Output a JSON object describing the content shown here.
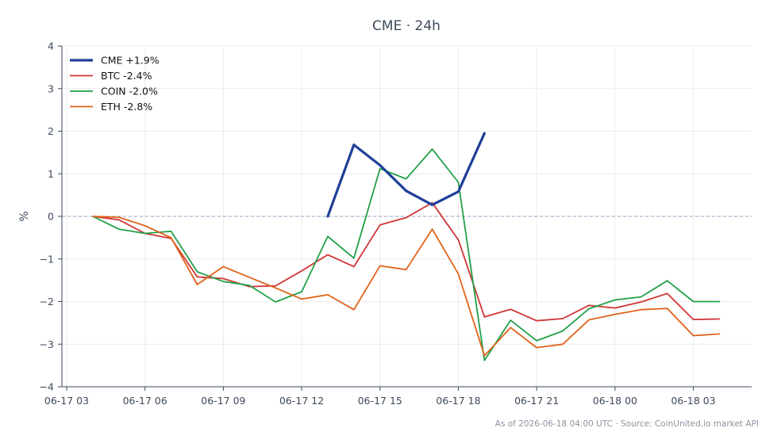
{
  "chart_data": {
    "type": "line",
    "title": "CME · 24h",
    "xlabel": "",
    "ylabel": "%",
    "ylim": [
      -4,
      4
    ],
    "yticks": [
      "4",
      "3",
      "2",
      "1",
      "0",
      "−1",
      "−2",
      "−3",
      "−4"
    ],
    "x_tick_labels": [
      "06-17 03",
      "06-17 06",
      "06-17 09",
      "06-17 12",
      "06-17 15",
      "06-17 18",
      "06-17 21",
      "06-18 00",
      "06-18 03"
    ],
    "x": [
      "06-17 04",
      "06-17 05",
      "06-17 06",
      "06-17 07",
      "06-17 08",
      "06-17 09",
      "06-17 10",
      "06-17 11",
      "06-17 12",
      "06-17 13",
      "06-17 14",
      "06-17 15",
      "06-17 16",
      "06-17 17",
      "06-17 18",
      "06-17 19",
      "06-17 20",
      "06-17 21",
      "06-17 22",
      "06-17 23",
      "06-18 00",
      "06-18 01",
      "06-18 02",
      "06-18 03",
      "06-18 04"
    ],
    "grid": true,
    "zero_line": true,
    "legend_position": "top-left",
    "series": [
      {
        "name": "CME +1.9%",
        "color": "#1f3f99",
        "width": 3.2,
        "values": [
          null,
          null,
          null,
          null,
          null,
          null,
          null,
          null,
          null,
          0.0,
          1.68,
          1.2,
          0.6,
          0.27,
          0.58,
          1.95,
          null,
          null,
          null,
          null,
          null,
          null,
          null,
          null,
          null
        ]
      },
      {
        "name": "BTC -2.4%",
        "color": "#d03535",
        "width": 1.8,
        "values": [
          0.0,
          -0.08,
          -0.4,
          -0.52,
          -1.42,
          -1.46,
          -1.65,
          -1.63,
          -1.28,
          -0.9,
          -1.18,
          -0.2,
          -0.03,
          0.32,
          -0.55,
          -2.36,
          -2.18,
          -2.45,
          -2.4,
          -2.09,
          -2.15,
          -2.01,
          -1.81,
          -2.42,
          -2.41
        ]
      },
      {
        "name": "COIN -2.0%",
        "color": "#22a049",
        "width": 1.8,
        "values": [
          0.0,
          -0.3,
          -0.4,
          -0.35,
          -1.3,
          -1.53,
          -1.62,
          -2.01,
          -1.77,
          -0.47,
          -0.98,
          1.12,
          0.88,
          1.58,
          0.8,
          -3.38,
          -2.44,
          -2.92,
          -2.69,
          -2.17,
          -1.96,
          -1.89,
          -1.51,
          -2.0,
          -2.0
        ]
      },
      {
        "name": "ETH -2.8%",
        "color": "#e0621a",
        "width": 1.8,
        "values": [
          0.0,
          -0.02,
          -0.22,
          -0.5,
          -1.6,
          -1.18,
          -1.43,
          -1.68,
          -1.94,
          -1.84,
          -2.19,
          -1.16,
          -1.25,
          -0.3,
          -1.35,
          -3.27,
          -2.61,
          -3.08,
          -3.0,
          -2.43,
          -2.3,
          -2.19,
          -2.16,
          -2.8,
          -2.76
        ]
      }
    ],
    "colors": {
      "axis": "#3d4a5c",
      "grid": "#ececec",
      "zero_line": "#8fa6c4"
    }
  },
  "footer": "As of 2026-06-18 04:00 UTC · Source: CoinUnited.io market API"
}
